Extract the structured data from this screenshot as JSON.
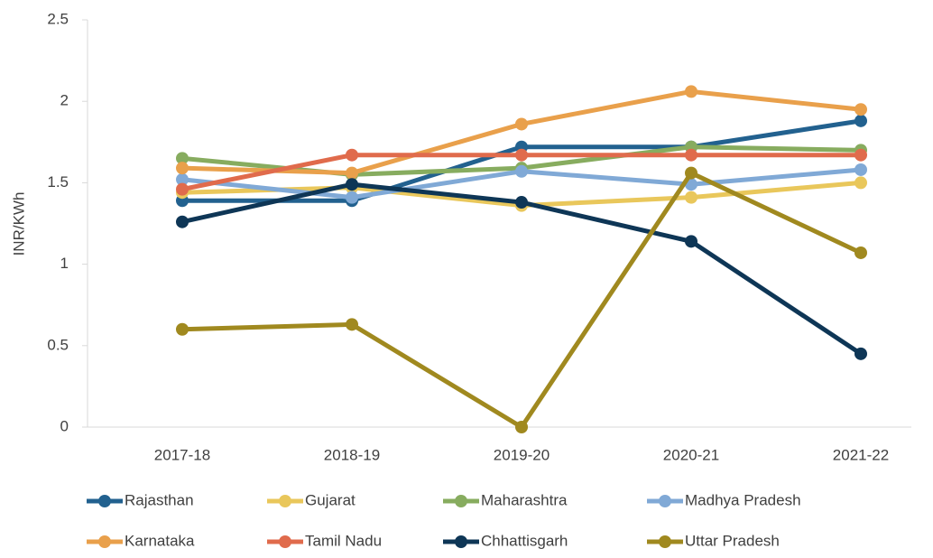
{
  "chart_data": {
    "type": "line",
    "y_label": "INR/KWh",
    "categories": [
      "2017-18",
      "2018-19",
      "2019-20",
      "2020-21",
      "2021-22"
    ],
    "ylim": [
      0,
      2.5
    ],
    "yticks": [
      0,
      0.5,
      1,
      1.5,
      2,
      2.5
    ],
    "legend": "bottom",
    "series": [
      {
        "name": "Rajasthan",
        "color": "#22618f",
        "values": [
          1.39,
          1.39,
          1.72,
          1.72,
          1.88
        ]
      },
      {
        "name": "Gujarat",
        "color": "#e9c75b",
        "values": [
          1.44,
          1.47,
          1.36,
          1.41,
          1.5
        ]
      },
      {
        "name": "Maharashtra",
        "color": "#87ac5f",
        "values": [
          1.65,
          1.55,
          1.59,
          1.72,
          1.7
        ]
      },
      {
        "name": "Madhya Pradesh",
        "color": "#80a9d6",
        "values": [
          1.52,
          1.41,
          1.57,
          1.49,
          1.58
        ]
      },
      {
        "name": "Karnataka",
        "color": "#e9a04b",
        "values": [
          1.59,
          1.56,
          1.86,
          2.06,
          1.95
        ]
      },
      {
        "name": "Tamil Nadu",
        "color": "#e06b4c",
        "values": [
          1.46,
          1.67,
          1.67,
          1.67,
          1.67
        ]
      },
      {
        "name": "Chhattisgarh",
        "color": "#0e3656",
        "values": [
          1.26,
          1.49,
          1.38,
          1.14,
          0.45
        ]
      },
      {
        "name": "Uttar Pradesh",
        "color": "#a0891f",
        "values": [
          0.6,
          0.63,
          0,
          1.56,
          1.07
        ]
      }
    ]
  }
}
